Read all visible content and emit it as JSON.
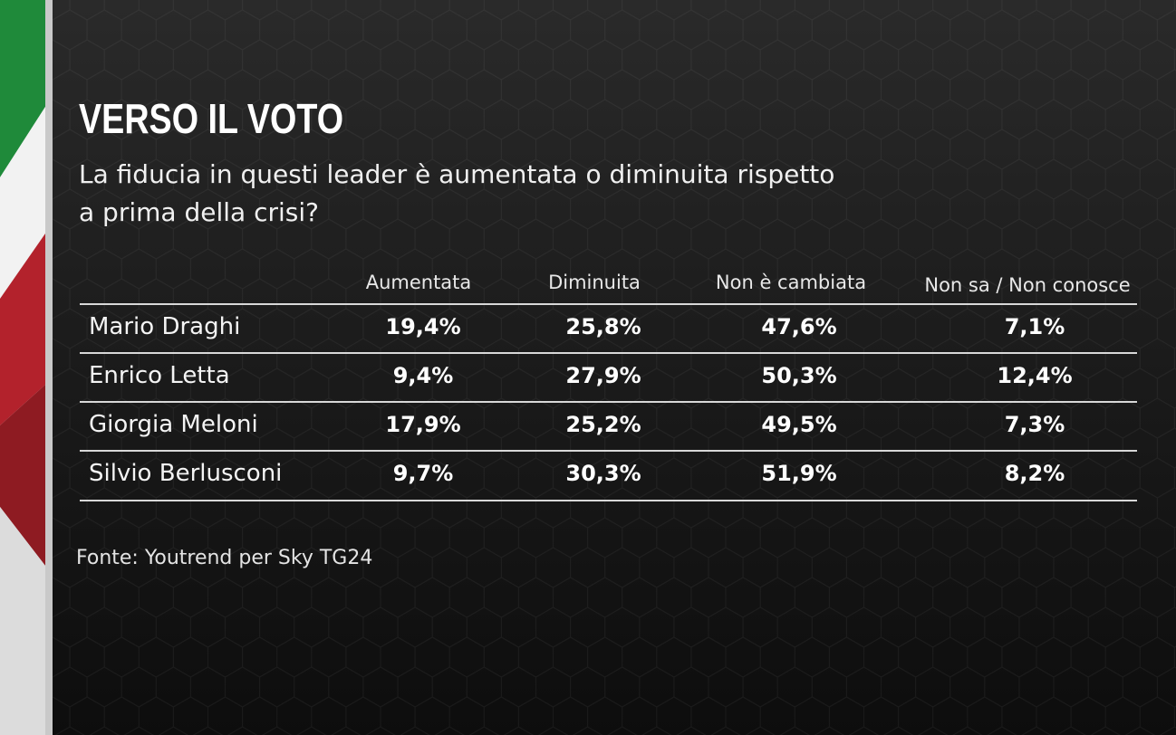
{
  "header": {
    "title": "VERSO IL VOTO",
    "subtitle": "La fiducia in questi leader è aumentata o diminuita rispetto a prima della crisi?"
  },
  "chart_data": {
    "type": "table",
    "columns": [
      "Aumentata",
      "Diminuita",
      "Non è cambiata",
      "Non sa / Non conosce"
    ],
    "rows": [
      {
        "leader": "Mario Draghi",
        "values": [
          "19,4%",
          "25,8%",
          "47,6%",
          "7,1%"
        ]
      },
      {
        "leader": "Enrico Letta",
        "values": [
          "9,4%",
          "27,9%",
          "50,3%",
          "12,4%"
        ]
      },
      {
        "leader": "Giorgia Meloni",
        "values": [
          "17,9%",
          "25,2%",
          "49,5%",
          "7,3%"
        ]
      },
      {
        "leader": "Silvio Berlusconi",
        "values": [
          "9,7%",
          "30,3%",
          "51,9%",
          "8,2%"
        ]
      }
    ]
  },
  "footer": {
    "source": "Fonte: Youtrend per Sky TG24"
  },
  "colors": {
    "flag_green": "#1f8a3a",
    "flag_white": "#eeeeee",
    "flag_red": "#b3222c",
    "background": "#151515",
    "rule": "#d8d8d8"
  }
}
